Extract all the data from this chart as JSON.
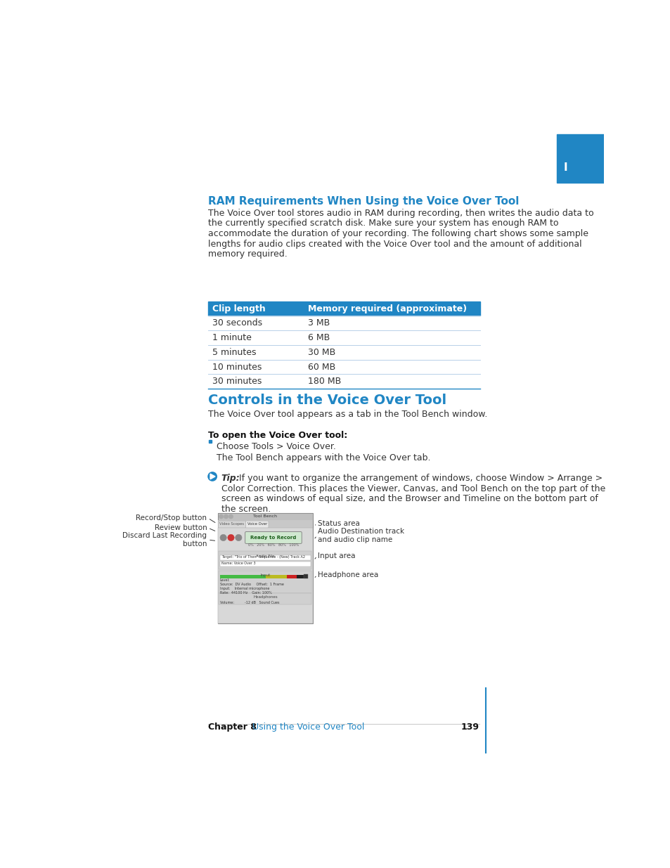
{
  "bg_color": "#ffffff",
  "blue_color": "#2086c4",
  "text_color": "#333333",
  "section1_title": "RAM Requirements When Using the Voice Over Tool",
  "section1_body_lines": [
    "The Voice Over tool stores audio in RAM during recording, then writes the audio data to",
    "the currently specified scratch disk. Make sure your system has enough RAM to",
    "accommodate the duration of your recording. The following chart shows some sample",
    "lengths for audio clips created with the Voice Over tool and the amount of additional",
    "memory required."
  ],
  "table_headers": [
    "Clip length",
    "Memory required (approximate)"
  ],
  "table_rows": [
    [
      "30 seconds",
      "3 MB"
    ],
    [
      "1 minute",
      "6 MB"
    ],
    [
      "5 minutes",
      "30 MB"
    ],
    [
      "10 minutes",
      "60 MB"
    ],
    [
      "30 minutes",
      "180 MB"
    ]
  ],
  "section2_title": "Controls in the Voice Over Tool",
  "section2_body": "The Voice Over tool appears as a tab in the Tool Bench window.",
  "step_title": "To open the Voice Over tool:",
  "step_bullet": "Choose Tools > Voice Over.",
  "step_result": "The Tool Bench appears with the Voice Over tab.",
  "tip_italic": "Tip:",
  "tip_body": "  If you want to organize the arrangement of windows, choose Window > Arrange >",
  "tip_body2": "Color Correction. This places the Viewer, Canvas, and Tool Bench on the top part of the",
  "tip_body3": "screen as windows of equal size, and the Browser and Timeline on the bottom part of",
  "tip_body4": "the screen.",
  "footer_chapter": "Chapter 8",
  "footer_link": "Using the Voice Over Tool",
  "footer_page": "139",
  "left_labels": [
    "Record/Stop button",
    "Review button",
    "Discard Last Recording\nbutton"
  ],
  "right_labels": [
    "Status area",
    "Audio Destination track\nand audio clip name",
    "Input area",
    "Headphone area"
  ]
}
